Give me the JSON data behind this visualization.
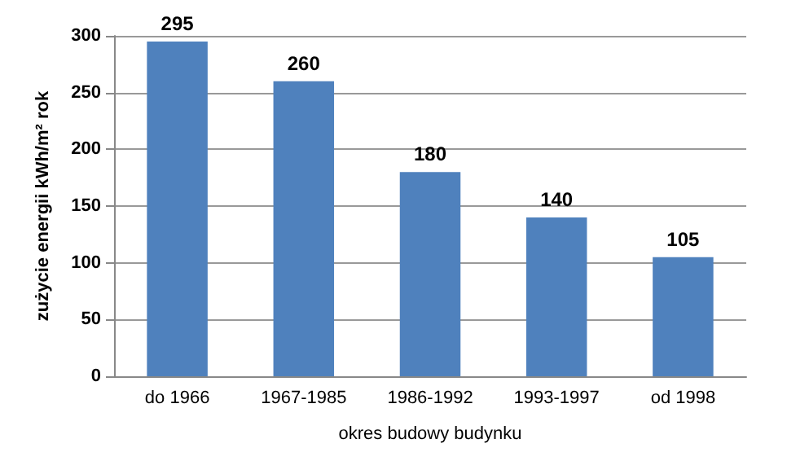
{
  "chart_data": {
    "type": "bar",
    "categories": [
      "do 1966",
      "1967-1985",
      "1986-1992",
      "1993-1997",
      "od 1998"
    ],
    "values": [
      295,
      260,
      180,
      140,
      105
    ],
    "color": "#4f81bd",
    "data_labels": true,
    "xlabel": "okres budowy budynku",
    "ylabel": "zużycie energii kWh/m² rok",
    "ylim": [
      0,
      300
    ],
    "yticks": [
      0,
      50,
      100,
      150,
      200,
      250,
      300
    ],
    "grid": "y"
  }
}
